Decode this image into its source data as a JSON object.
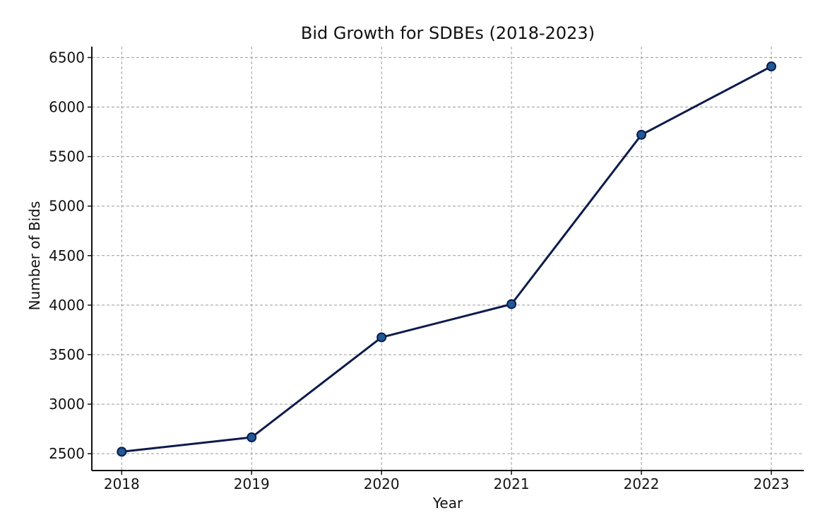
{
  "chart_data": {
    "type": "line",
    "title": "Bid Growth for SDBEs (2018-2023)",
    "xlabel": "Year",
    "ylabel": "Number of Bids",
    "x": [
      2018,
      2019,
      2020,
      2021,
      2022,
      2023
    ],
    "x_tick_labels": [
      "2018",
      "2019",
      "2020",
      "2021",
      "2022",
      "2023"
    ],
    "series": [
      {
        "values": [
          2520,
          2665,
          3675,
          4010,
          5720,
          6410
        ]
      }
    ],
    "ylim": [
      2330,
      6610
    ],
    "xlim": [
      2017.77,
      2023.25
    ],
    "y_ticks": [
      2500,
      3000,
      3500,
      4000,
      4500,
      5000,
      5500,
      6000,
      6500
    ],
    "y_tick_labels": [
      "2500",
      "3000",
      "3500",
      "4000",
      "4500",
      "5000",
      "5500",
      "6000",
      "6500"
    ],
    "grid": true,
    "colors": {
      "line": "#0d1b4c",
      "marker_fill": "#1f5a96",
      "marker_edge": "#0d1b4c"
    }
  }
}
